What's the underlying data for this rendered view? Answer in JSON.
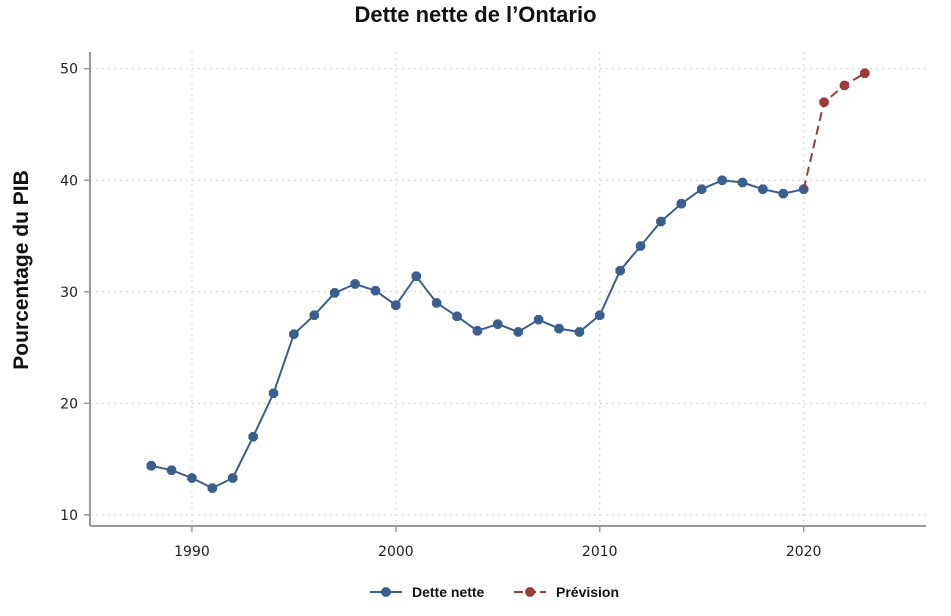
{
  "chart_data": {
    "type": "line",
    "title": "Dette nette de l’Ontario",
    "xlabel": "",
    "ylabel": "Pourcentage du PIB",
    "xlim": [
      1985,
      2026
    ],
    "ylim": [
      9,
      51.5
    ],
    "x_ticks": [
      1990,
      2000,
      2010,
      2020
    ],
    "y_ticks": [
      10,
      20,
      30,
      40,
      50
    ],
    "grid": true,
    "legend_position": "bottom",
    "series": [
      {
        "name": "Dette nette",
        "color": "#3a5f8f",
        "style": "solid",
        "x": [
          1988,
          1989,
          1990,
          1991,
          1992,
          1993,
          1994,
          1995,
          1996,
          1997,
          1998,
          1999,
          2000,
          2001,
          2002,
          2003,
          2004,
          2005,
          2006,
          2007,
          2008,
          2009,
          2010,
          2011,
          2012,
          2013,
          2014,
          2015,
          2016,
          2017,
          2018,
          2019,
          2020
        ],
        "y": [
          14.4,
          14.0,
          13.3,
          12.4,
          13.3,
          17.0,
          20.9,
          26.2,
          27.9,
          29.9,
          30.7,
          30.1,
          28.8,
          31.4,
          29.0,
          27.8,
          26.5,
          27.1,
          26.4,
          27.5,
          26.7,
          26.4,
          27.9,
          31.9,
          34.1,
          36.3,
          37.9,
          39.2,
          40.0,
          39.8,
          39.2,
          38.8,
          39.2
        ]
      },
      {
        "name": "Prévision",
        "color": "#9c3b3b",
        "style": "dashed",
        "x": [
          2020,
          2021,
          2022,
          2023
        ],
        "y": [
          39.2,
          47.0,
          48.5,
          49.6
        ]
      }
    ]
  }
}
